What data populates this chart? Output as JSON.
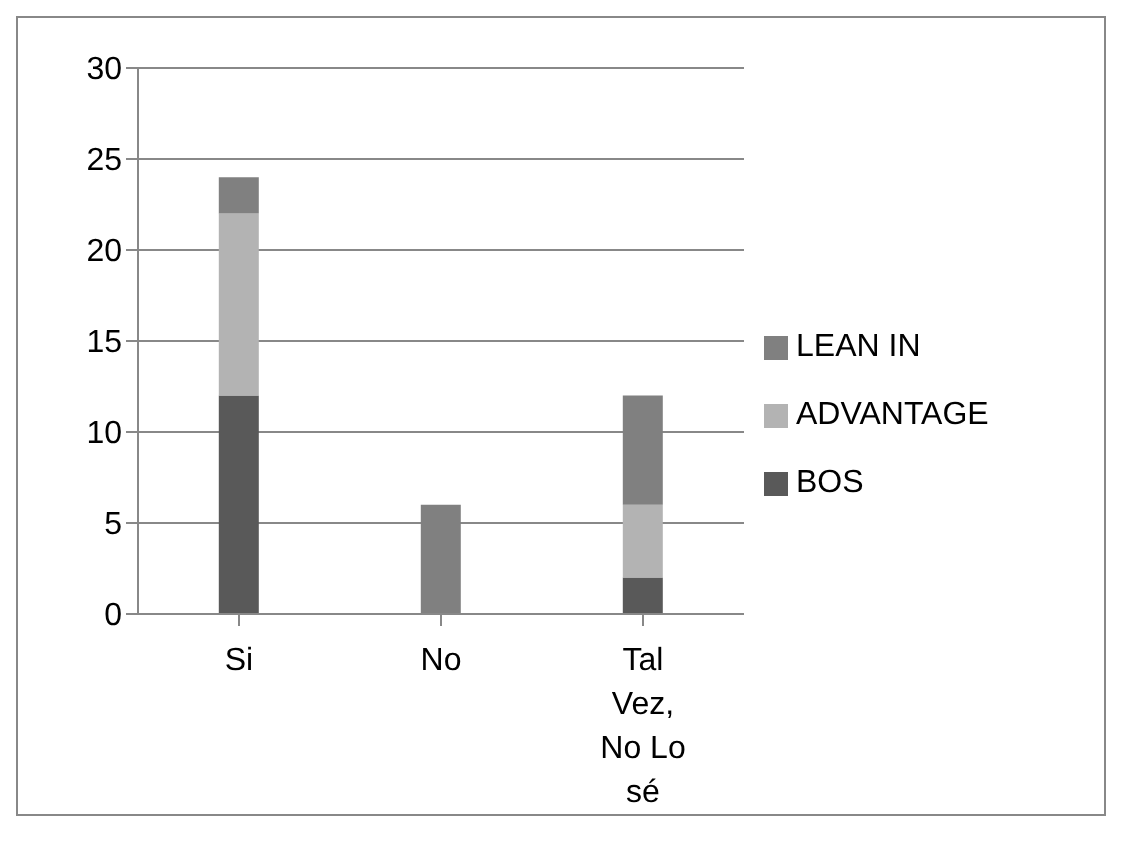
{
  "chart_data": {
    "type": "bar",
    "stacked": true,
    "categories": [
      "Si",
      "No",
      "Tal Vez, No Lo sé"
    ],
    "series": [
      {
        "name": "BOS",
        "color": "#595959",
        "values": [
          12,
          0,
          2
        ]
      },
      {
        "name": "ADVANTAGE",
        "color": "#b3b3b3",
        "values": [
          10,
          0,
          4
        ]
      },
      {
        "name": "LEAN IN",
        "color": "#808080",
        "values": [
          2,
          6,
          6
        ]
      }
    ],
    "ylim": [
      0,
      30
    ],
    "yticks": [
      0,
      5,
      10,
      15,
      20,
      25,
      30
    ],
    "grid": "y",
    "legend": "right"
  }
}
